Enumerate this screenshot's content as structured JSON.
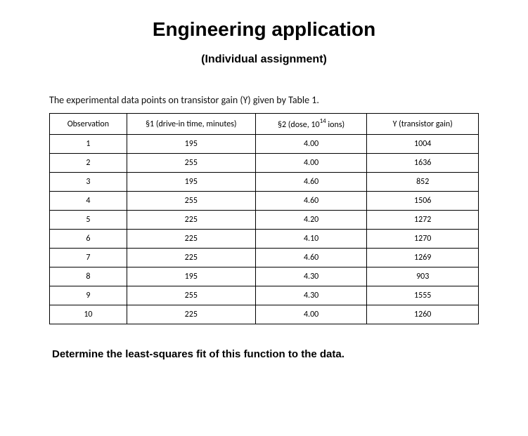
{
  "title": "Engineering application",
  "subtitle": "(Individual assignment)",
  "intro": "The experimental data points on transistor gain (Y) given by Table 1.",
  "table": {
    "columns": [
      "Observation",
      "§1 (drive-in time, minutes)",
      "§2 (dose, 10",
      "Y (transistor gain)"
    ],
    "col3_sup": "14",
    "col3_tail": " ions)",
    "rows": [
      [
        "1",
        "195",
        "4.00",
        "1004"
      ],
      [
        "2",
        "255",
        "4.00",
        "1636"
      ],
      [
        "3",
        "195",
        "4.60",
        "852"
      ],
      [
        "4",
        "255",
        "4.60",
        "1506"
      ],
      [
        "5",
        "225",
        "4.20",
        "1272"
      ],
      [
        "6",
        "225",
        "4.10",
        "1270"
      ],
      [
        "7",
        "225",
        "4.60",
        "1269"
      ],
      [
        "8",
        "195",
        "4.30",
        "903"
      ],
      [
        "9",
        "255",
        "4.30",
        "1555"
      ],
      [
        "10",
        "225",
        "4.00",
        "1260"
      ]
    ]
  },
  "closing": "Determine the least-squares fit of this function to the data.",
  "styles": {
    "font_family_main": "Calibri, Arial, sans-serif",
    "font_family_bold": "Arial, sans-serif",
    "title_fontsize": 28,
    "subtitle_fontsize": 16,
    "intro_fontsize": 14,
    "table_fontsize": 12,
    "closing_fontsize": 15,
    "border_color": "#000000",
    "text_color": "#000000",
    "background_color": "#ffffff",
    "col_widths_percent": [
      18,
      30,
      26,
      26
    ]
  }
}
